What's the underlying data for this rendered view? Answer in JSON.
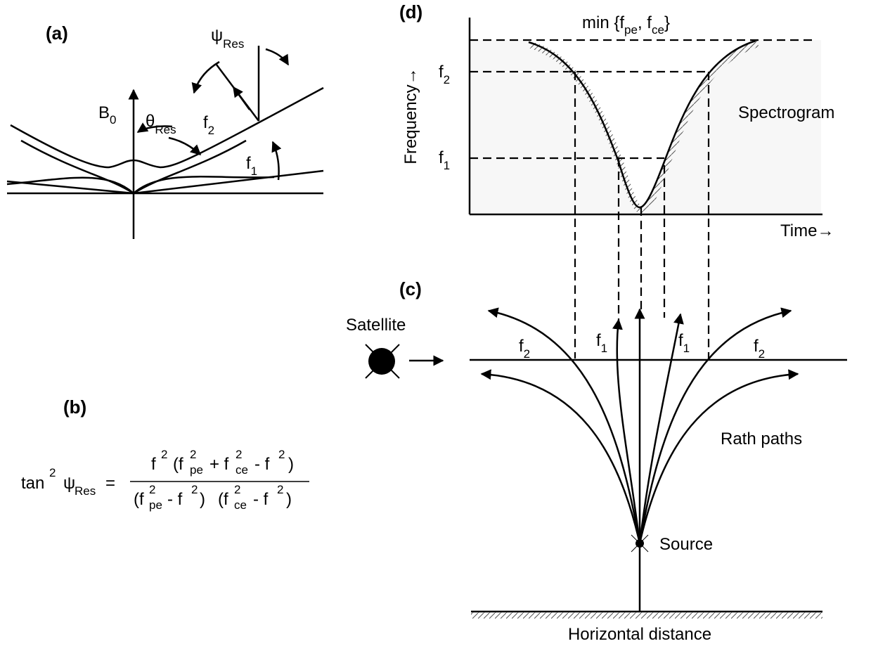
{
  "panel_a": {
    "label": "(a)",
    "b0": {
      "base": "B",
      "sub": "0"
    },
    "theta": {
      "base": "θ",
      "sub": "Res"
    },
    "psi": {
      "base": "ψ",
      "sub": "Res"
    },
    "f2": {
      "base": "f",
      "sub": "2"
    },
    "f1": {
      "base": "f",
      "sub": "1"
    }
  },
  "panel_b": {
    "label": "(b)",
    "lhs": [
      "tan",
      "2",
      "ψ",
      "Res",
      "="
    ],
    "numerator": [
      "f",
      "2",
      "(f",
      "2",
      "pe",
      "+ f",
      "2",
      "ce",
      "- f",
      "2",
      ")"
    ],
    "denominator": [
      "(f",
      "2",
      "pe",
      "- f",
      "2",
      ")",
      "(f",
      "2",
      "ce",
      "- f",
      "2",
      ")"
    ]
  },
  "panel_d": {
    "label": "(d)",
    "min_label": [
      "min {f",
      "pe",
      ", f",
      "ce",
      "}"
    ],
    "y_axis": "Frequency→",
    "x_axis": "Time→",
    "f2": {
      "base": "f",
      "sub": "2"
    },
    "f1": {
      "base": "f",
      "sub": "1"
    },
    "name": "Spectrogram"
  },
  "panel_c": {
    "label": "(c)",
    "satellite": "Satellite",
    "rays": [
      {
        "base": "f",
        "sub": "2"
      },
      {
        "base": "f",
        "sub": "1"
      },
      {
        "base": "f",
        "sub": "1"
      },
      {
        "base": "f",
        "sub": "2"
      }
    ],
    "paths_label": "Rath paths",
    "source": "Source",
    "x_axis": "Horizontal distance"
  }
}
